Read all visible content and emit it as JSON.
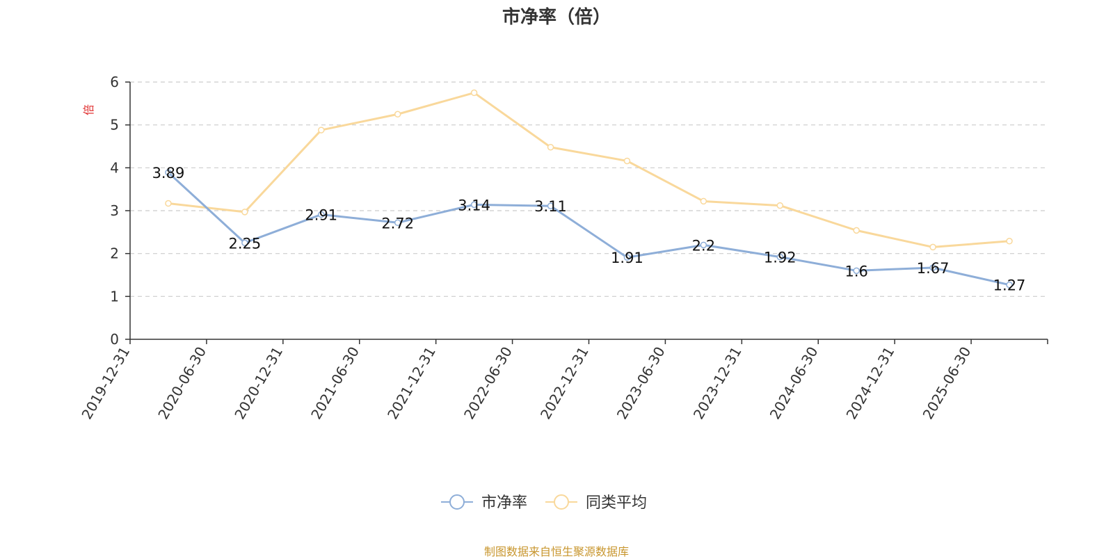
{
  "chart_data": {
    "type": "line",
    "title": "市净率（倍）",
    "ylabel": "倍",
    "xlabel": "",
    "categories": [
      "2019-12-31",
      "2020-06-30",
      "2020-12-31",
      "2021-06-30",
      "2021-12-31",
      "2022-06-30",
      "2022-12-31",
      "2023-06-30",
      "2023-12-31",
      "2024-06-30",
      "2024-12-31",
      "2025-06-30"
    ],
    "yticks": [
      "0",
      "1",
      "2",
      "3",
      "4",
      "5",
      "6"
    ],
    "ylim": [
      0,
      6
    ],
    "grid": "horizontal-dashed",
    "legend_position": "bottom-center",
    "series": [
      {
        "name": "市净率",
        "color": "#8eaed8",
        "values": [
          3.89,
          2.25,
          2.91,
          2.72,
          3.14,
          3.11,
          1.91,
          2.2,
          1.92,
          1.6,
          1.67,
          1.27
        ],
        "labels": [
          "3.89",
          "2.25",
          "2.91",
          "2.72",
          "3.14",
          "3.11",
          "1.91",
          "2.2",
          "1.92",
          "1.6",
          "1.67",
          "1.27"
        ]
      },
      {
        "name": "同类平均",
        "color": "#f9d89b",
        "values": [
          3.17,
          2.97,
          4.88,
          5.25,
          5.75,
          4.48,
          4.16,
          3.22,
          3.12,
          2.54,
          2.15,
          2.29
        ]
      }
    ],
    "ylabel_color": "#e03030"
  },
  "footer": {
    "source": "制图数据来自恒生聚源数据库"
  }
}
